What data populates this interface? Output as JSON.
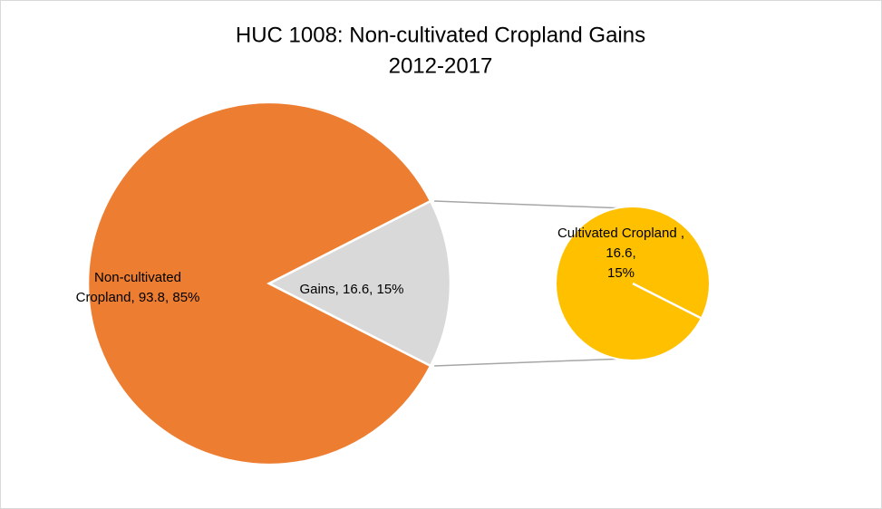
{
  "chart_data": {
    "type": "pie-of-pie",
    "title": "HUC 1008: Non-cultivated Cropland Gains",
    "subtitle": "2012-2017",
    "categories": [
      "Non-cultivated Cropland",
      "Gains"
    ],
    "values": [
      93.8,
      16.6
    ],
    "colors": [
      "#ED7D31",
      "#D9D9D9"
    ],
    "value_labels": [
      [
        "Non-cultivated",
        "Cropland, 93.8, 85%"
      ],
      [
        "Gains, 16.6, 15%"
      ]
    ],
    "secondary": {
      "categories": [
        "Cultivated Cropland "
      ],
      "values": [
        16.6
      ],
      "colors": [
        "#FFC000"
      ],
      "value_labels": [
        [
          "Cultivated Cropland ,",
          "16.6,",
          "15%"
        ]
      ]
    }
  }
}
